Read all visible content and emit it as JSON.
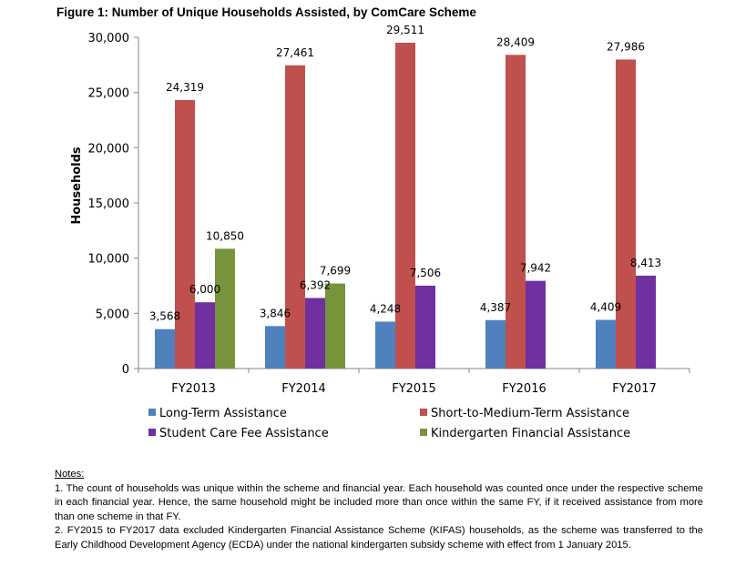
{
  "figure_title": "Figure 1: Number of Unique Households Assisted, by ComCare Scheme",
  "chart_data": {
    "type": "bar",
    "title": "Figure 1: Number of Unique Households Assisted, by ComCare Scheme",
    "xlabel": "",
    "ylabel": "Households",
    "ylim": [
      0,
      30000
    ],
    "yticks": [
      0,
      5000,
      10000,
      15000,
      20000,
      25000,
      30000
    ],
    "ytick_labels": [
      "0",
      "5,000",
      "10,000",
      "15,000",
      "20,000",
      "25,000",
      "30,000"
    ],
    "grid": false,
    "legend_position": "bottom",
    "categories": [
      "FY2013",
      "FY2014",
      "FY2015",
      "FY2016",
      "FY2017"
    ],
    "series": [
      {
        "name": "Long-Term Assistance",
        "color": "#4f81bd",
        "values": [
          3568,
          3846,
          4248,
          4387,
          4409
        ],
        "labels": [
          "3,568",
          "3,846",
          "4,248",
          "4,387",
          "4,409"
        ]
      },
      {
        "name": "Short-to-Medium-Term Assistance",
        "color": "#c0504d",
        "values": [
          24319,
          27461,
          29511,
          28409,
          27986
        ],
        "labels": [
          "24,319",
          "27,461",
          "29,511",
          "28,409",
          "27,986"
        ]
      },
      {
        "name": "Student Care Fee Assistance",
        "color": "#7030a0",
        "values": [
          6000,
          6392,
          7506,
          7942,
          8413
        ],
        "labels": [
          "6,000",
          "6,392",
          "7,506",
          "7,942",
          "8,413"
        ]
      },
      {
        "name": "Kindergarten Financial Assistance",
        "color": "#77933c",
        "values": [
          10850,
          7699,
          null,
          null,
          null
        ],
        "labels": [
          "10,850",
          "7,699",
          null,
          null,
          null
        ]
      }
    ]
  },
  "notes": {
    "heading": "Notes:",
    "items": [
      "1. The count of households was unique within the scheme and financial year. Each household was counted once under the respective scheme in each financial year. Hence, the same household might be included more than once within the same FY, if it received assistance from more than one scheme in that FY.",
      "2. FY2015 to FY2017 data excluded Kindergarten Financial Assistance Scheme (KIFAS) households, as the scheme was transferred to the Early Childhood Development Agency (ECDA) under the national kindergarten subsidy scheme with effect from 1 January 2015."
    ]
  }
}
